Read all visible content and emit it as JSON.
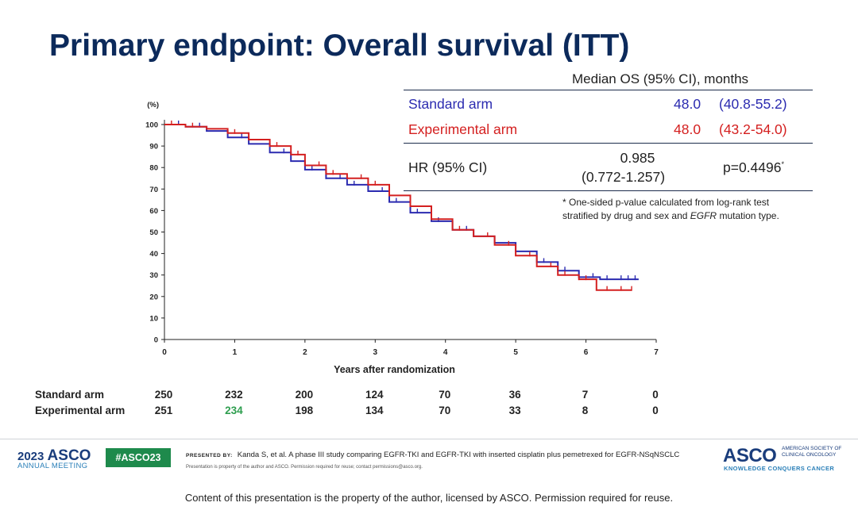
{
  "slide": {
    "title": "Primary endpoint: Overall survival (ITT)"
  },
  "table": {
    "header": "Median OS (95% CI), months",
    "rows": [
      {
        "name": "Standard arm",
        "median": "48.0",
        "ci": "(40.8-55.2)",
        "color": "#2b2bb0"
      },
      {
        "name": "Experimental arm",
        "median": "48.0",
        "ci": "(43.2-54.0)",
        "color": "#d42020"
      }
    ],
    "hr_label": "HR (95% CI)",
    "hr_value": "0.985",
    "hr_ci": "(0.772-1.257)",
    "p_value": "p=0.4496",
    "p_marker": "*",
    "footnote_line1": "* One-sided p-value calculated from log-rank test",
    "footnote_line2_pre": "stratified by drug and sex and ",
    "footnote_line2_em": "EGFR",
    "footnote_line2_post": " mutation type."
  },
  "chart_data": {
    "type": "line",
    "subtype": "kaplan-meier",
    "ylabel": "(%)",
    "xlabel": "Years after randomization",
    "xlim": [
      0,
      7
    ],
    "ylim": [
      0,
      100
    ],
    "xticks": [
      0,
      1,
      2,
      3,
      4,
      5,
      6,
      7
    ],
    "yticks": [
      0,
      10,
      20,
      30,
      40,
      50,
      60,
      70,
      80,
      90,
      100
    ],
    "series": [
      {
        "name": "Standard arm",
        "color": "#2b2bb0",
        "x": [
          0,
          0.3,
          0.6,
          0.9,
          1.2,
          1.5,
          1.8,
          2.0,
          2.3,
          2.6,
          2.9,
          3.2,
          3.5,
          3.8,
          4.1,
          4.4,
          4.7,
          5.0,
          5.3,
          5.6,
          5.9,
          6.2,
          6.5,
          6.75
        ],
        "y": [
          100,
          99,
          97,
          94,
          91,
          87,
          83,
          79,
          75,
          72,
          69,
          64,
          59,
          55,
          51,
          48,
          45,
          41,
          36,
          32,
          29,
          28,
          28,
          28
        ],
        "censor_x": [
          0.2,
          0.5,
          1.1,
          1.7,
          2.1,
          2.3,
          2.5,
          2.7,
          2.9,
          3.1,
          3.3,
          3.6,
          3.9,
          4.3,
          4.7,
          5.0,
          5.4,
          5.7,
          5.9,
          6.1,
          6.3,
          6.5,
          6.6,
          6.7
        ]
      },
      {
        "name": "Experimental arm",
        "color": "#d42020",
        "x": [
          0,
          0.3,
          0.6,
          0.9,
          1.2,
          1.5,
          1.8,
          2.0,
          2.3,
          2.6,
          2.9,
          3.2,
          3.5,
          3.8,
          4.1,
          4.4,
          4.7,
          5.0,
          5.3,
          5.6,
          5.9,
          6.15,
          6.5,
          6.65
        ],
        "y": [
          100,
          99,
          98,
          96,
          93,
          90,
          86,
          81,
          77,
          75,
          72,
          67,
          62,
          56,
          51,
          48,
          44,
          39,
          34,
          30,
          28,
          23,
          23,
          23
        ],
        "censor_x": [
          0.1,
          0.4,
          1.0,
          1.6,
          1.9,
          2.2,
          2.4,
          2.6,
          2.8,
          3.0,
          3.2,
          3.5,
          3.8,
          4.2,
          4.6,
          4.9,
          5.2,
          5.5,
          5.7,
          5.9,
          6.0,
          6.3,
          6.5,
          6.65
        ]
      }
    ]
  },
  "risk_table": {
    "rows": [
      {
        "label": "Standard arm",
        "values": [
          "250",
          "232",
          "200",
          "124",
          "70",
          "36",
          "7",
          "0"
        ]
      },
      {
        "label": "Experimental arm",
        "values": [
          "251",
          "234",
          "198",
          "134",
          "70",
          "33",
          "8",
          "0"
        ]
      }
    ],
    "highlight_color": "#2e9e4f"
  },
  "footer": {
    "year": "2023",
    "brand": "ASCO",
    "meeting": "ANNUAL MEETING",
    "hashtag": "#ASCO23",
    "presented_by_label": "PRESENTED BY:",
    "presented_by_text": "Kanda S, et al. A phase III study comparing EGFR-TKI and EGFR-TKI with inserted cisplatin plus pemetrexed for EGFR-NSqNSCLC",
    "notice": "Presentation is property of the author and ASCO. Permission required for reuse; contact permissions@asco.org.",
    "logo_text": "ASCO",
    "society_line1": "AMERICAN SOCIETY OF",
    "society_line2": "CLINICAL ONCOLOGY",
    "tagline": "KNOWLEDGE CONQUERS CANCER",
    "copyright": "Content of this presentation is the property of the author, licensed by ASCO. Permission required for reuse."
  }
}
